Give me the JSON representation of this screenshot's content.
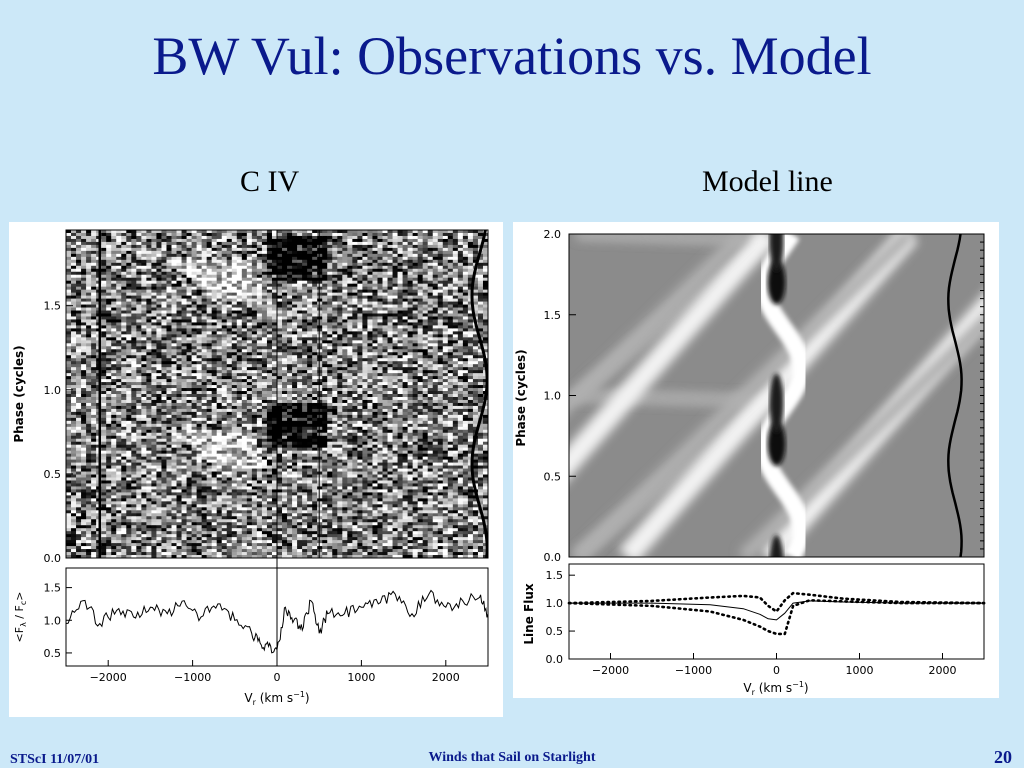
{
  "slide": {
    "title": "BW Vul: Observations vs. Model",
    "footer_left": "STScI 11/07/01",
    "footer_center": "Winds that Sail on Starlight",
    "page_number": "20"
  },
  "panels": {
    "left_label": "C IV",
    "right_label": "Model line"
  },
  "chart_data": [
    {
      "type": "heatmap",
      "panel": "C IV",
      "title": "",
      "ylabel": "Phase (cycles)",
      "yticks": [
        "0.0",
        "0.5",
        "1.0",
        "1.5"
      ],
      "ylim": [
        0.0,
        1.95
      ],
      "xlim": [
        -2500,
        2500
      ],
      "description_of_features": {
        "dark_absorption_phases": [
          0.72,
          0.85,
          1.72,
          1.85
        ],
        "dark_absorption_velocity_range": [
          -100,
          600
        ],
        "bright_streak_phases": [
          0.65,
          1.65
        ],
        "bright_streak_velocity_range": [
          -1000,
          -200
        ],
        "vertical_markers_velocity": [
          -2100,
          0,
          500
        ],
        "edge_wiggle_velocity": 2400
      }
    },
    {
      "type": "line",
      "panel": "C IV",
      "xlabel": "V_r (km s^-1)",
      "ylabel": "<F_λ / F_c>",
      "xticks": [
        "−2000",
        "−1000",
        "0",
        "1000",
        "2000"
      ],
      "yticks": [
        "0.5",
        "1.0",
        "1.5"
      ],
      "xlim": [
        -2500,
        2500
      ],
      "ylim": [
        0.3,
        1.8
      ],
      "series": [
        {
          "x": [
            -2500,
            -2300,
            -2100,
            -1900,
            -1700,
            -1500,
            -1300,
            -1100,
            -900,
            -700,
            -500,
            -300,
            -200,
            -100,
            0,
            100,
            200,
            300,
            400,
            500,
            600,
            800,
            1000,
            1200,
            1400,
            1600,
            1800,
            2000,
            2200,
            2400,
            2500
          ],
          "y": [
            0.95,
            1.3,
            0.95,
            1.15,
            1.05,
            1.2,
            1.1,
            1.3,
            1.05,
            1.25,
            1.0,
            0.8,
            0.65,
            0.6,
            0.55,
            1.2,
            1.0,
            0.85,
            1.3,
            0.8,
            1.1,
            1.1,
            1.2,
            1.25,
            1.4,
            1.1,
            1.4,
            1.2,
            1.3,
            1.35,
            1.1
          ]
        }
      ]
    },
    {
      "type": "heatmap",
      "panel": "Model line",
      "ylabel": "Phase (cycles)",
      "yticks": [
        "0.0",
        "0.5",
        "1.0",
        "1.5",
        "2.0"
      ],
      "ylim": [
        0.0,
        2.0
      ],
      "xlim": [
        -2500,
        2500
      ]
    },
    {
      "type": "line",
      "panel": "Model line",
      "xlabel": "V_r (km s^-1)",
      "ylabel": "Line Flux",
      "xticks": [
        "−2000",
        "−1000",
        "0",
        "1000",
        "2000"
      ],
      "yticks": [
        "0.0",
        "0.5",
        "1.0",
        "1.5"
      ],
      "xlim": [
        -2500,
        2500
      ],
      "ylim": [
        0.0,
        1.7
      ],
      "series": [
        {
          "style": "solid",
          "x": [
            -2500,
            -1500,
            -800,
            -400,
            -200,
            -100,
            0,
            100,
            200,
            400,
            800,
            1500,
            2500
          ],
          "y": [
            1.0,
            1.0,
            0.97,
            0.9,
            0.8,
            0.72,
            0.7,
            0.82,
            1.0,
            1.04,
            1.02,
            1.0,
            1.0
          ]
        },
        {
          "style": "dotted",
          "x": [
            -2500,
            -1500,
            -800,
            -400,
            -200,
            -100,
            0,
            100,
            200,
            400,
            800,
            1500,
            2500
          ],
          "y": [
            1.0,
            1.04,
            1.1,
            1.13,
            1.1,
            0.95,
            0.85,
            1.05,
            1.18,
            1.15,
            1.08,
            1.02,
            1.0
          ]
        },
        {
          "style": "dotted",
          "x": [
            -2500,
            -1500,
            -800,
            -400,
            -200,
            -100,
            0,
            100,
            200,
            400,
            800,
            1500,
            2500
          ],
          "y": [
            1.0,
            0.95,
            0.85,
            0.7,
            0.58,
            0.5,
            0.45,
            0.45,
            0.95,
            1.05,
            1.03,
            1.0,
            1.0
          ]
        }
      ]
    }
  ]
}
